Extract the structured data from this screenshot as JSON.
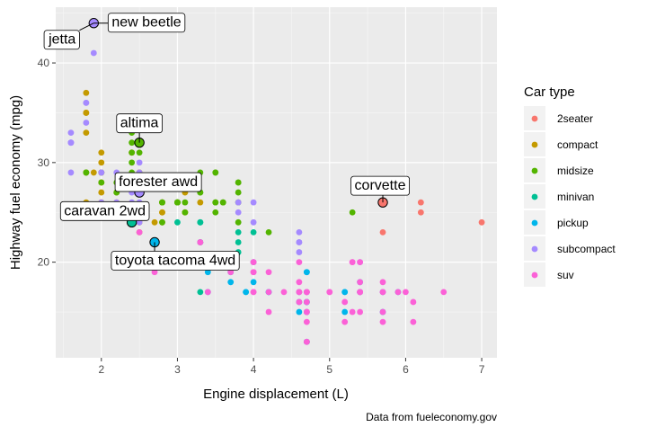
{
  "chart_data": {
    "type": "scatter",
    "xlabel": "Engine displacement (L)",
    "ylabel": "Highway fuel economy (mpg)",
    "caption": "Data from fueleconomy.gov",
    "xlim": [
      1.4,
      7.2
    ],
    "ylim": [
      10.4,
      45.6
    ],
    "x_ticks": [
      2,
      3,
      4,
      5,
      6,
      7
    ],
    "y_ticks": [
      20,
      30,
      40
    ],
    "grid": true,
    "legend": {
      "title": "Car type",
      "position": "right",
      "entries": [
        {
          "label": "2seater",
          "color": "#F8766D"
        },
        {
          "label": "compact",
          "color": "#C49A00"
        },
        {
          "label": "midsize",
          "color": "#53B400"
        },
        {
          "label": "minivan",
          "color": "#00C094"
        },
        {
          "label": "pickup",
          "color": "#00B6EB"
        },
        {
          "label": "subcompact",
          "color": "#A58AFF"
        },
        {
          "label": "suv",
          "color": "#FB61D7"
        }
      ]
    },
    "series": [
      {
        "name": "2seater",
        "points": [
          [
            5.7,
            26
          ],
          [
            5.7,
            23
          ],
          [
            6.2,
            26
          ],
          [
            6.2,
            25
          ],
          [
            7.0,
            24
          ]
        ]
      },
      {
        "name": "compact",
        "points": [
          [
            1.8,
            29
          ],
          [
            1.8,
            29
          ],
          [
            2.0,
            31
          ],
          [
            2.0,
            30
          ],
          [
            2.8,
            26
          ],
          [
            2.8,
            26
          ],
          [
            3.1,
            27
          ],
          [
            1.8,
            26
          ],
          [
            1.8,
            25
          ],
          [
            2.0,
            28
          ],
          [
            2.0,
            27
          ],
          [
            2.8,
            25
          ],
          [
            2.8,
            25
          ],
          [
            3.1,
            25
          ],
          [
            3.1,
            25
          ],
          [
            2.2,
            26
          ],
          [
            2.2,
            27
          ],
          [
            2.4,
            31
          ],
          [
            2.4,
            31
          ],
          [
            3.0,
            26
          ],
          [
            3.0,
            26
          ],
          [
            3.3,
            26
          ],
          [
            2.0,
            28
          ],
          [
            2.0,
            29
          ],
          [
            2.0,
            26
          ],
          [
            2.0,
            29
          ],
          [
            2.8,
            24
          ],
          [
            1.9,
            44
          ],
          [
            1.9,
            29
          ],
          [
            2.0,
            26
          ],
          [
            2.0,
            29
          ],
          [
            2.5,
            29
          ],
          [
            2.5,
            29
          ],
          [
            2.5,
            23
          ],
          [
            2.5,
            24
          ],
          [
            1.8,
            33
          ],
          [
            1.8,
            35
          ],
          [
            1.8,
            37
          ],
          [
            1.8,
            35
          ],
          [
            2.7,
            24
          ]
        ]
      },
      {
        "name": "midsize",
        "points": [
          [
            2.8,
            24
          ],
          [
            3.1,
            25
          ],
          [
            4.2,
            23
          ],
          [
            2.4,
            30
          ],
          [
            2.4,
            33
          ],
          [
            3.1,
            26
          ],
          [
            3.5,
            29
          ],
          [
            3.6,
            26
          ],
          [
            2.4,
            29
          ],
          [
            3.0,
            26
          ],
          [
            3.3,
            27
          ],
          [
            3.3,
            27
          ],
          [
            3.8,
            28
          ],
          [
            3.8,
            26
          ],
          [
            3.8,
            24
          ],
          [
            3.8,
            28
          ],
          [
            3.8,
            27
          ],
          [
            3.0,
            26
          ],
          [
            3.5,
            26
          ],
          [
            3.5,
            29
          ],
          [
            2.5,
            32
          ],
          [
            2.5,
            31
          ],
          [
            2.5,
            27
          ],
          [
            2.5,
            27
          ],
          [
            3.5,
            26
          ],
          [
            3.5,
            25
          ],
          [
            3.3,
            29
          ],
          [
            1.8,
            29
          ],
          [
            1.8,
            29
          ],
          [
            2.0,
            28
          ],
          [
            2.0,
            29
          ],
          [
            2.8,
            26
          ],
          [
            2.8,
            26
          ],
          [
            3.6,
            26
          ],
          [
            5.3,
            25
          ],
          [
            2.2,
            27
          ],
          [
            2.2,
            28
          ],
          [
            2.4,
            31
          ],
          [
            2.4,
            32
          ],
          [
            3.0,
            26
          ],
          [
            3.0,
            26
          ]
        ]
      },
      {
        "name": "minivan",
        "points": [
          [
            2.4,
            24
          ],
          [
            3.0,
            24
          ],
          [
            3.3,
            22
          ],
          [
            3.3,
            22
          ],
          [
            3.3,
            24
          ],
          [
            3.3,
            24
          ],
          [
            3.3,
            17
          ],
          [
            3.8,
            22
          ],
          [
            3.8,
            21
          ],
          [
            3.8,
            23
          ],
          [
            4.0,
            23
          ]
        ]
      },
      {
        "name": "pickup",
        "points": [
          [
            3.7,
            19
          ],
          [
            3.7,
            18
          ],
          [
            3.9,
            17
          ],
          [
            3.9,
            17
          ],
          [
            4.7,
            19
          ],
          [
            4.7,
            19
          ],
          [
            4.7,
            12
          ],
          [
            5.2,
            17
          ],
          [
            5.2,
            15
          ],
          [
            5.7,
            17
          ],
          [
            5.9,
            17
          ],
          [
            4.7,
            16
          ],
          [
            4.7,
            15
          ],
          [
            4.7,
            17
          ],
          [
            4.7,
            12
          ],
          [
            4.7,
            16
          ],
          [
            5.2,
            17
          ],
          [
            5.7,
            15
          ],
          [
            4.2,
            17
          ],
          [
            4.2,
            17
          ],
          [
            4.6,
            16
          ],
          [
            4.6,
            17
          ],
          [
            4.6,
            15
          ],
          [
            5.4,
            17
          ],
          [
            5.4,
            17
          ],
          [
            5.4,
            18
          ],
          [
            2.7,
            20
          ],
          [
            2.7,
            20
          ],
          [
            2.7,
            22
          ],
          [
            3.4,
            17
          ],
          [
            3.4,
            19
          ],
          [
            4.0,
            18
          ],
          [
            4.0,
            20
          ]
        ]
      },
      {
        "name": "subcompact",
        "points": [
          [
            3.8,
            26
          ],
          [
            3.8,
            25
          ],
          [
            4.0,
            26
          ],
          [
            4.0,
            24
          ],
          [
            4.6,
            21
          ],
          [
            4.6,
            22
          ],
          [
            4.6,
            23
          ],
          [
            4.6,
            22
          ],
          [
            5.4,
            20
          ],
          [
            1.6,
            33
          ],
          [
            1.6,
            32
          ],
          [
            1.6,
            32
          ],
          [
            1.6,
            29
          ],
          [
            1.6,
            32
          ],
          [
            1.8,
            34
          ],
          [
            1.8,
            36
          ],
          [
            1.8,
            36
          ],
          [
            2.0,
            29
          ],
          [
            2.4,
            26
          ],
          [
            2.4,
            27
          ],
          [
            2.5,
            30
          ],
          [
            2.5,
            26
          ],
          [
            2.5,
            27
          ],
          [
            2.2,
            26
          ],
          [
            2.2,
            29
          ],
          [
            2.5,
            24
          ],
          [
            2.5,
            25
          ],
          [
            1.9,
            44
          ],
          [
            1.9,
            41
          ],
          [
            2.0,
            29
          ],
          [
            2.0,
            26
          ],
          [
            2.5,
            28
          ],
          [
            2.5,
            29
          ]
        ]
      },
      {
        "name": "suv",
        "points": [
          [
            5.3,
            20
          ],
          [
            5.3,
            15
          ],
          [
            5.3,
            20
          ],
          [
            5.7,
            17
          ],
          [
            6.0,
            17
          ],
          [
            5.7,
            26
          ],
          [
            4.0,
            17
          ],
          [
            4.7,
            17
          ],
          [
            4.7,
            15
          ],
          [
            4.7,
            17
          ],
          [
            5.2,
            16
          ],
          [
            5.2,
            14
          ],
          [
            5.7,
            17
          ],
          [
            5.9,
            17
          ],
          [
            4.6,
            18
          ],
          [
            5.4,
            17
          ],
          [
            5.4,
            17
          ],
          [
            4.0,
            19
          ],
          [
            4.0,
            17
          ],
          [
            4.6,
            17
          ],
          [
            5.0,
            17
          ],
          [
            4.2,
            17
          ],
          [
            4.2,
            15
          ],
          [
            4.6,
            17
          ],
          [
            5.4,
            18
          ],
          [
            5.4,
            17
          ],
          [
            3.7,
            19
          ],
          [
            4.7,
            14
          ],
          [
            4.7,
            15
          ],
          [
            4.7,
            17
          ],
          [
            5.7,
            18
          ],
          [
            6.1,
            14
          ],
          [
            4.0,
            20
          ],
          [
            4.2,
            19
          ],
          [
            4.4,
            17
          ],
          [
            4.6,
            16
          ],
          [
            5.4,
            15
          ],
          [
            5.4,
            17
          ],
          [
            5.4,
            20
          ],
          [
            6.5,
            17
          ],
          [
            4.0,
            20
          ],
          [
            4.0,
            19
          ],
          [
            4.6,
            20
          ],
          [
            5.0,
            17
          ],
          [
            2.7,
            19
          ],
          [
            3.4,
            17
          ],
          [
            2.5,
            23
          ],
          [
            3.3,
            22
          ],
          [
            3.3,
            22
          ],
          [
            4.7,
            12
          ],
          [
            4.7,
            12
          ],
          [
            4.7,
            16
          ],
          [
            5.7,
            15
          ],
          [
            5.7,
            14
          ],
          [
            6.1,
            16
          ]
        ]
      }
    ],
    "highlighted": [
      {
        "label": "new beetle",
        "x": 1.9,
        "y": 44,
        "type": "subcompact"
      },
      {
        "label": "jetta",
        "x": 1.9,
        "y": 44,
        "type": "compact"
      },
      {
        "label": "altima",
        "x": 2.5,
        "y": 32,
        "type": "midsize"
      },
      {
        "label": "forester awd",
        "x": 2.5,
        "y": 27,
        "type": "subcompact"
      },
      {
        "label": "caravan 2wd",
        "x": 2.4,
        "y": 24,
        "type": "minivan"
      },
      {
        "label": "toyota tacoma 4wd",
        "x": 2.7,
        "y": 22,
        "type": "pickup"
      },
      {
        "label": "corvette",
        "x": 5.7,
        "y": 26,
        "type": "2seater"
      }
    ]
  }
}
